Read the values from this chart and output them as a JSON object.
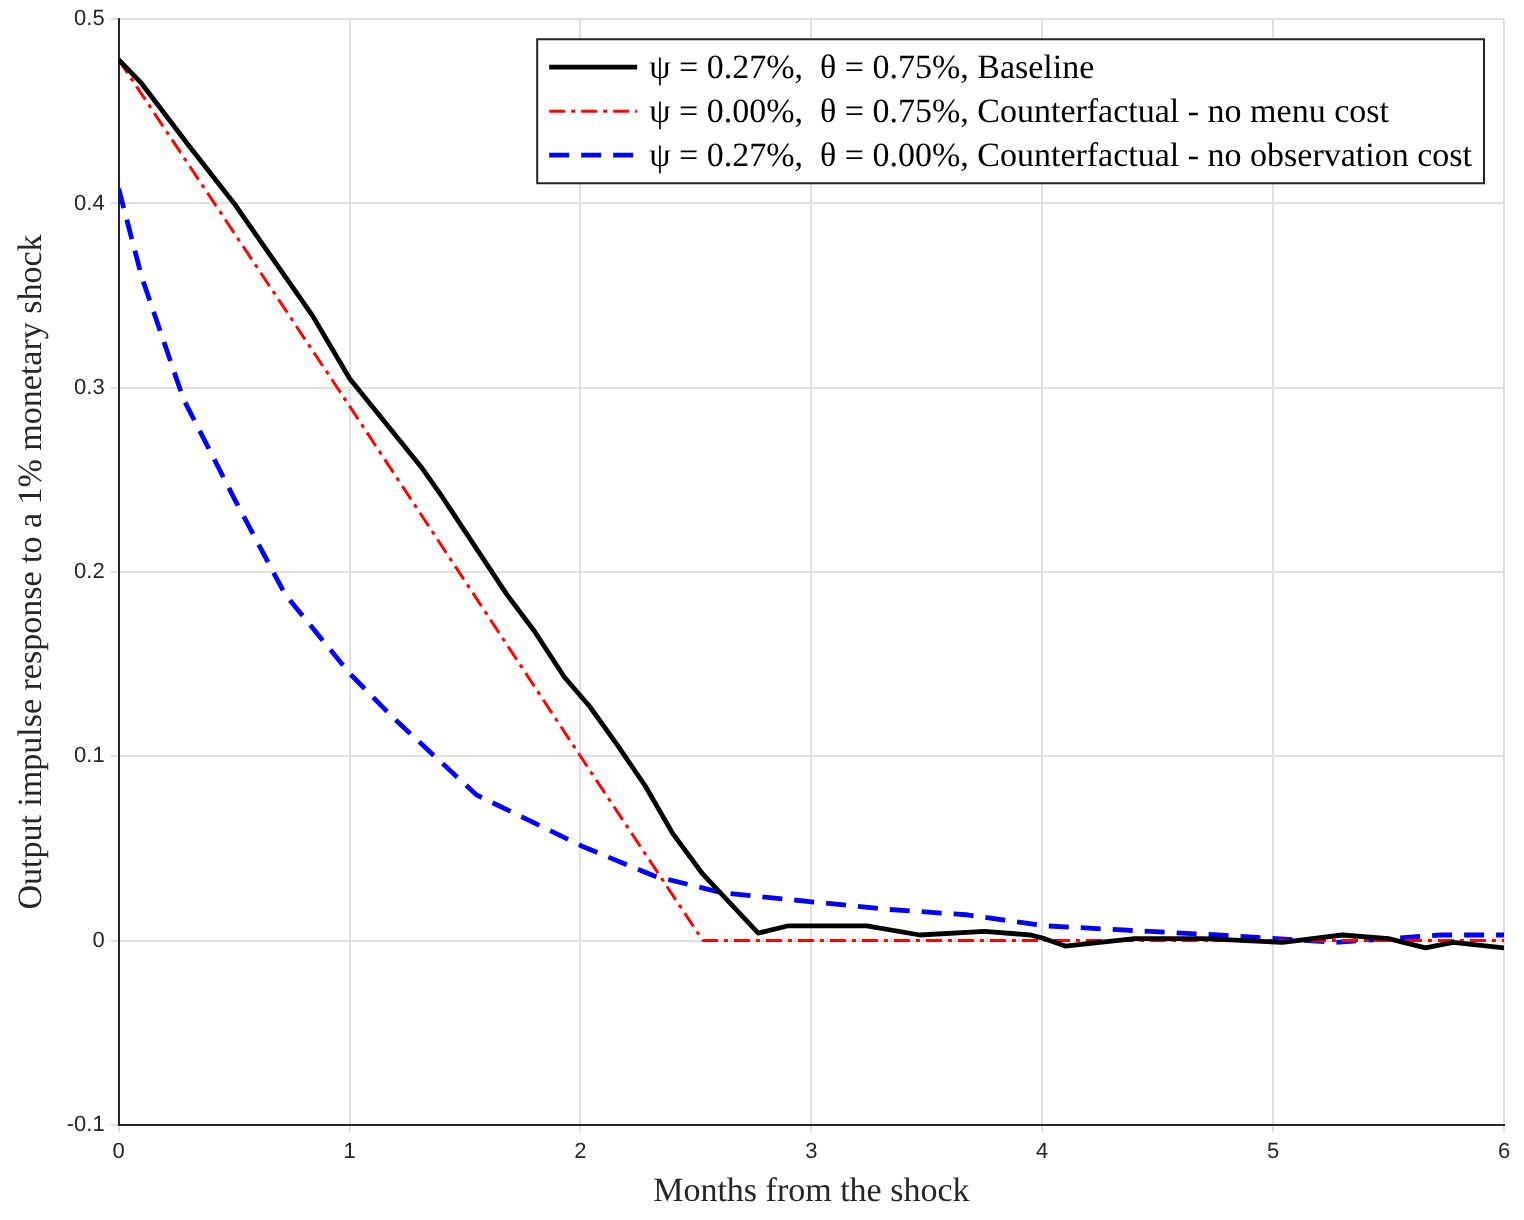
{
  "chart_data": {
    "type": "line",
    "xlabel": "Months from the shock",
    "ylabel": "Output impulse response to a 1% monetary shock",
    "xlim": [
      0,
      6
    ],
    "xticks": [
      0,
      1,
      2,
      3,
      4,
      5,
      6
    ],
    "ylim": [
      -0.1,
      0.5
    ],
    "yticks": [
      -0.1,
      0,
      0.1,
      0.2,
      0.3,
      0.4,
      0.5
    ],
    "grid": true,
    "legend": "top right",
    "marker": "none",
    "series": [
      {
        "name": "ψ = 0.27%,  θ = 0.75%, Baseline",
        "color": "#000000",
        "line_style": "solid",
        "x": [
          0,
          0.1,
          0.3,
          0.5,
          0.84,
          1.0,
          1.31,
          1.4,
          1.68,
          1.8,
          1.93,
          2.04,
          2.16,
          2.28,
          2.4,
          2.53,
          2.77,
          2.9,
          3.24,
          3.47,
          3.75,
          3.95,
          4.01,
          4.1,
          4.4,
          4.7,
          5.04,
          5.3,
          5.5,
          5.66,
          5.78,
          6.0
        ],
        "values": [
          0.478,
          0.465,
          0.432,
          0.4,
          0.339,
          0.305,
          0.257,
          0.241,
          0.188,
          0.168,
          0.143,
          0.127,
          0.106,
          0.084,
          0.058,
          0.036,
          0.004,
          0.008,
          0.008,
          0.003,
          0.005,
          0.003,
          0.001,
          -0.003,
          0.001,
          0.001,
          -0.001,
          0.003,
          0.001,
          -0.004,
          -0.001,
          -0.004
        ]
      },
      {
        "name": "ψ = 0.00%,  θ = 0.75%, Counterfactual - no menu cost",
        "color": "#ff0000",
        "line_style": "dashdot",
        "x": [
          0,
          1,
          2,
          2.53,
          4,
          6
        ],
        "values": [
          0.478,
          0.29,
          0.1,
          0,
          0,
          0
        ]
      },
      {
        "name": "ψ = 0.27%,  θ = 0.00%, Counterfactual - no observation cost",
        "color": "#0000ff",
        "line_style": "dashed",
        "x": [
          0,
          0.1,
          0.28,
          0.5,
          0.72,
          1.0,
          1.18,
          1.3,
          1.55,
          2.01,
          2.32,
          2.61,
          3.32,
          3.67,
          4.01,
          4.76,
          5.27,
          5.72,
          6.0
        ],
        "values": [
          0.408,
          0.36,
          0.294,
          0.24,
          0.188,
          0.145,
          0.122,
          0.108,
          0.079,
          0.051,
          0.035,
          0.026,
          0.017,
          0.014,
          0.008,
          0.003,
          -0.001,
          0.003,
          0.003
        ]
      }
    ]
  }
}
